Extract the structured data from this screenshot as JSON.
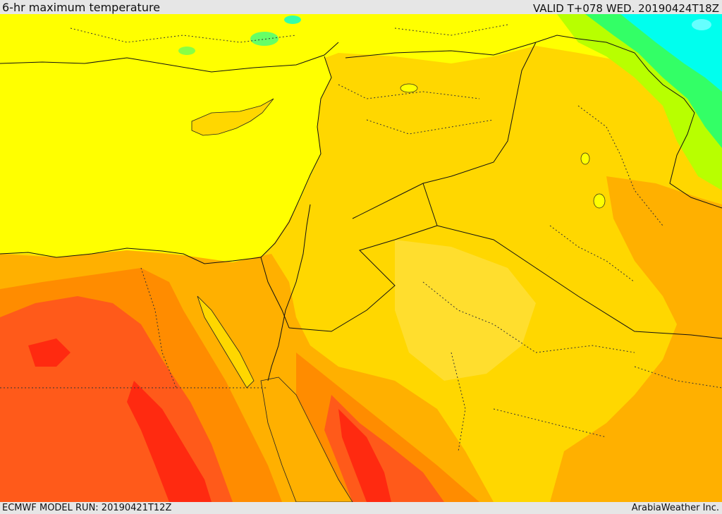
{
  "header": {
    "title": "6-hr maximum temperature",
    "valid_time": "VALID T+078 WED. 20190424T18Z"
  },
  "footer": {
    "model_run": "ECMWF MODEL RUN: 20190421T12Z",
    "credit": "ArabiaWeather Inc."
  },
  "palette": {
    "sea_yellow": "#ffff00",
    "light_orange": "#ffd700",
    "orange": "#ffb000",
    "dark_orange": "#ff8c00",
    "red_orange": "#ff5a1a",
    "red": "#ff2a10",
    "lime": "#b8ff00",
    "green": "#33ff66",
    "cyan": "#00ffee"
  }
}
